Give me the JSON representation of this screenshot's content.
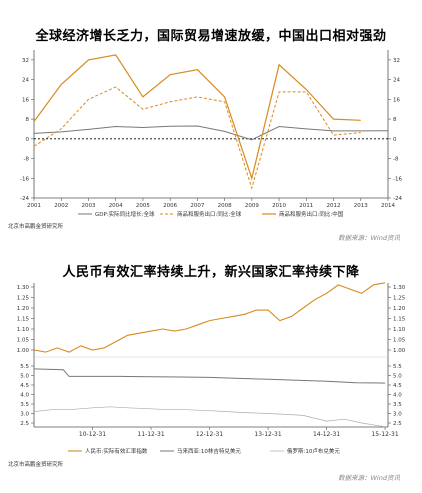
{
  "colors": {
    "orange": "#d98a1f",
    "gray": "#777777",
    "light_gray": "#aaaaaa",
    "axis": "#555555"
  },
  "chart_data": [
    {
      "type": "line",
      "title": "全球经济增长乏力，国际贸易增速放缓，中国出口相对强劲",
      "x": [
        "2001",
        "2002",
        "2003",
        "2004",
        "2005",
        "2006",
        "2007",
        "2008",
        "2009",
        "2010",
        "2011",
        "2012",
        "2013",
        "2014"
      ],
      "xlim": [
        2001,
        2014
      ],
      "ylim": [
        -24,
        36
      ],
      "yticks": [
        -24,
        -16,
        -8,
        0,
        8,
        16,
        24,
        32
      ],
      "series": [
        {
          "name": "GDP:实际同比增长:全球",
          "style": "solid-gray",
          "x": [
            2001,
            2002,
            2003,
            2004,
            2005,
            2006,
            2007,
            2008,
            2009,
            2010,
            2011,
            2012,
            2013,
            2014
          ],
          "values": [
            2.2,
            2.8,
            3.8,
            5.0,
            4.6,
            5.1,
            5.2,
            3.0,
            -0.4,
            5.0,
            4.0,
            3.2,
            3.2,
            3.3
          ]
        },
        {
          "name": "商品和服务出口:同比:全球",
          "style": "dashed-orange",
          "x": [
            2001,
            2002,
            2003,
            2004,
            2005,
            2006,
            2007,
            2008,
            2009,
            2010,
            2011,
            2012,
            2013
          ],
          "values": [
            -3,
            4,
            16,
            21,
            12,
            15,
            17,
            15,
            -20,
            19,
            19,
            1.5,
            2.5
          ]
        },
        {
          "name": "商品和服务出口:同比:中国",
          "style": "solid-orange",
          "x": [
            2001,
            2002,
            2003,
            2004,
            2005,
            2006,
            2007,
            2008,
            2009,
            2010,
            2011,
            2012,
            2013
          ],
          "values": [
            7,
            22,
            32,
            34,
            17,
            26,
            28,
            17,
            -16,
            30,
            20,
            8,
            7.5
          ]
        }
      ],
      "footnote": "北京市高鹏金贸研究所",
      "source": "数据来源：Wind资讯"
    },
    {
      "type": "line",
      "title": "人民币有效汇率持续上升，新兴国家汇率持续下降",
      "x_ticks": [
        "10-12-31",
        "11-12-31",
        "12-12-31",
        "13-12-31",
        "14-12-31",
        "15-12-31"
      ],
      "xlim": [
        2010.0,
        2016.05
      ],
      "ylim": [
        2.2,
        5.2
      ],
      "ylim_scale_note": "右上刻度",
      "upper_yticks": [
        1.0,
        1.05,
        1.1,
        1.15,
        1.2,
        1.25,
        1.3
      ],
      "lower_yticks": [
        2.5,
        3.0,
        3.5,
        4.0,
        4.5,
        5.0,
        5.5
      ],
      "series": [
        {
          "name": "人民币:实际有效汇率指数",
          "style": "solid-orange",
          "axis": "upper",
          "x": [
            2010.0,
            2010.2,
            2010.4,
            2010.6,
            2010.8,
            2011.0,
            2011.2,
            2011.4,
            2011.6,
            2011.8,
            2012.0,
            2012.2,
            2012.4,
            2012.6,
            2012.8,
            2013.0,
            2013.2,
            2013.4,
            2013.6,
            2013.8,
            2014.0,
            2014.2,
            2014.4,
            2014.6,
            2014.8,
            2015.0,
            2015.2,
            2015.4,
            2015.6,
            2015.8,
            2016.0
          ],
          "values": [
            1.0,
            0.99,
            1.01,
            0.99,
            1.02,
            1.0,
            1.01,
            1.04,
            1.07,
            1.08,
            1.09,
            1.1,
            1.09,
            1.1,
            1.12,
            1.14,
            1.15,
            1.16,
            1.17,
            1.19,
            1.19,
            1.14,
            1.16,
            1.2,
            1.24,
            1.27,
            1.31,
            1.29,
            1.27,
            1.31,
            1.32
          ]
        },
        {
          "name": "马来西亚:10林吉特兑美元",
          "style": "solid-gray",
          "axis": "lower",
          "x": [
            2010.0,
            2010.5,
            2010.6,
            2011.0,
            2011.5,
            2012.0,
            2012.5,
            2013.0,
            2013.5,
            2014.0,
            2014.5,
            2015.0,
            2015.5,
            2016.0
          ],
          "values": [
            5.35,
            5.3,
            4.95,
            4.95,
            4.95,
            4.93,
            4.92,
            4.9,
            4.85,
            4.8,
            4.75,
            4.7,
            4.62,
            4.6
          ]
        },
        {
          "name": "俄罗斯:10卢布兑美元",
          "style": "thin-light-gray",
          "axis": "lower",
          "x": [
            2010.0,
            2010.3,
            2010.6,
            2011.0,
            2011.3,
            2011.6,
            2012.0,
            2012.3,
            2012.6,
            2013.0,
            2013.3,
            2013.6,
            2014.0,
            2014.3,
            2014.6,
            2015.0,
            2015.3,
            2015.6,
            2016.0
          ],
          "values": [
            3.1,
            3.2,
            3.2,
            3.3,
            3.35,
            3.3,
            3.25,
            3.2,
            3.2,
            3.15,
            3.1,
            3.05,
            3.0,
            2.95,
            2.9,
            2.6,
            2.7,
            2.5,
            2.3
          ]
        }
      ],
      "footnote": "北京市高鹏金贸研究所",
      "source": "数据来源：Wind资讯"
    }
  ]
}
